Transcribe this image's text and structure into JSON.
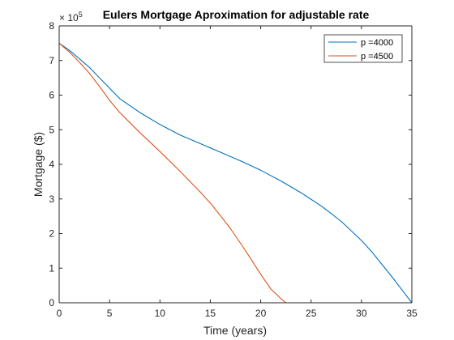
{
  "chart_data": {
    "type": "line",
    "title": "Eulers Mortgage Aproximation for adjustable rate",
    "xlabel": "Time (years)",
    "ylabel": "Mortgage ($)",
    "xlim": [
      0,
      35
    ],
    "ylim": [
      0,
      800000
    ],
    "xticks": [
      0,
      5,
      10,
      15,
      20,
      25,
      30,
      35
    ],
    "yticks": [
      0,
      100000,
      200000,
      300000,
      400000,
      500000,
      600000,
      700000,
      800000
    ],
    "ytick_labels": [
      "0",
      "1",
      "2",
      "3",
      "4",
      "5",
      "6",
      "7",
      "8"
    ],
    "y_exponent_base": "× 10",
    "y_exponent_power": "5",
    "grid": false,
    "legend_position": "top-right",
    "series": [
      {
        "name": "p =4000",
        "color": "#0072bd",
        "x": [
          0,
          1,
          2,
          3,
          4,
          5,
          6,
          8,
          10,
          12,
          14,
          16,
          18,
          20,
          22,
          24,
          26,
          28,
          30,
          31,
          32,
          33,
          34,
          35
        ],
        "y": [
          750000,
          730000,
          705000,
          680000,
          650000,
          620000,
          590000,
          550000,
          515000,
          485000,
          460000,
          435000,
          410000,
          383000,
          352000,
          318000,
          280000,
          235000,
          180000,
          148000,
          112000,
          76000,
          38000,
          0
        ]
      },
      {
        "name": "p =4500",
        "color": "#d95319",
        "x": [
          0,
          1,
          2,
          3,
          4,
          5,
          6,
          8,
          10,
          12,
          14,
          15,
          16,
          17,
          18,
          19,
          20,
          21,
          22,
          22.5
        ],
        "y": [
          750000,
          725000,
          695000,
          663000,
          625000,
          585000,
          550000,
          492000,
          437000,
          380000,
          320000,
          288000,
          252000,
          214000,
          172000,
          128000,
          82000,
          40000,
          12000,
          0
        ]
      }
    ]
  }
}
